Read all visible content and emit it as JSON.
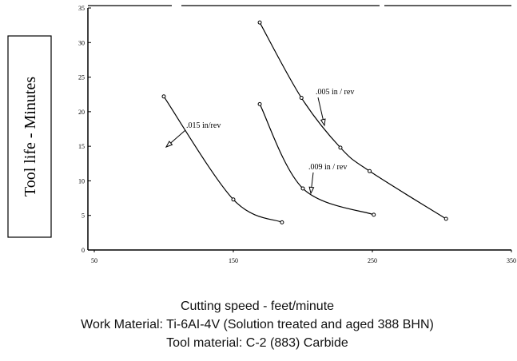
{
  "chart_data": {
    "type": "line",
    "y_label": "Tool life - Minutes",
    "x_label": "Cutting speed - feet/minute",
    "captions": [
      "Work Material: Ti-6AI-4V (Solution treated and aged 388 BHN)",
      "Tool material: C-2 (883) Carbide"
    ],
    "series": [
      {
        "name": ".015 in/rev",
        "color": "#000000",
        "x": [
          100,
          150,
          185
        ],
        "values": [
          22.2,
          7.3,
          4
        ]
      },
      {
        "name": ".009 in / rev",
        "color": "#000000",
        "x": [
          169,
          200,
          251
        ],
        "values": [
          21.1,
          8.9,
          5.1
        ]
      },
      {
        "name": ".005 in / rev",
        "color": "#000000",
        "x": [
          169,
          199,
          227,
          248,
          303
        ],
        "values": [
          32.9,
          22,
          14.8,
          11.4,
          4.5
        ]
      }
    ],
    "xlim": [
      50,
      350
    ],
    "xticks": [
      50,
      150,
      250,
      350
    ],
    "ylim": [
      0,
      35
    ],
    "yticks": [
      0,
      5,
      10,
      15,
      20,
      25,
      30,
      35
    ]
  }
}
